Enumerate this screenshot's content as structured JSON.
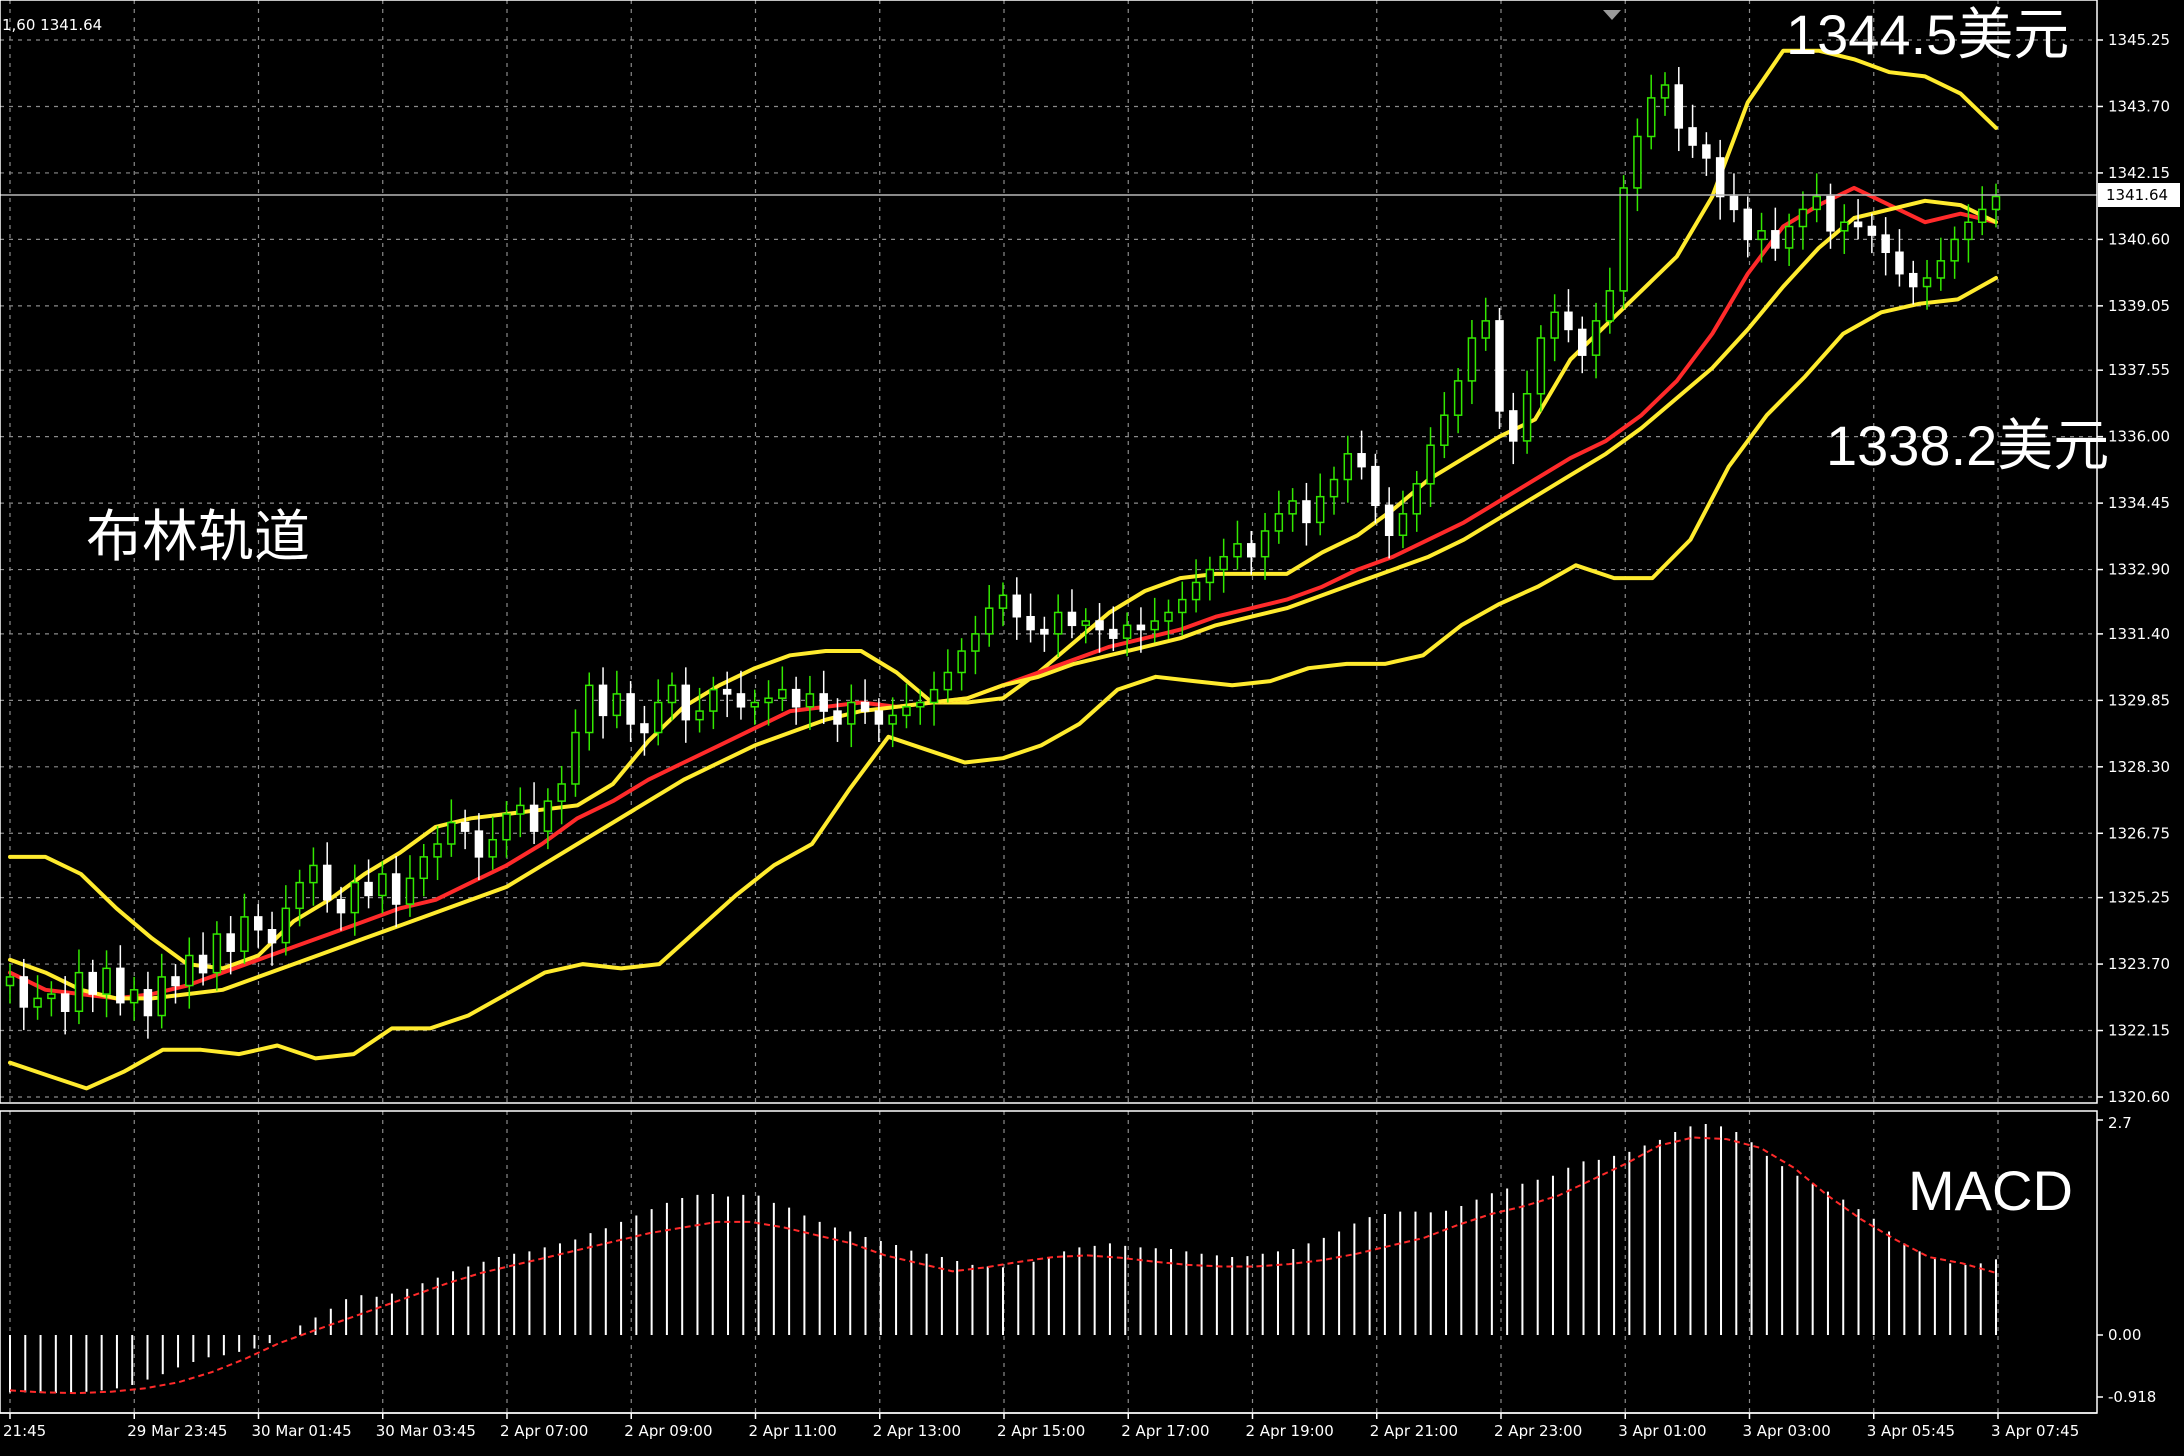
{
  "header": {
    "info_text": "1,60 1341.64"
  },
  "annotations": {
    "bollinger": "布林轨道",
    "upper_price": "1344.5美元",
    "lower_price": "1338.2美元",
    "macd": "MACD"
  },
  "colors": {
    "background": "#000000",
    "grid": "#8a8a8a",
    "bull_candle": "#33e800",
    "bear_candle": "#ffffff",
    "bollinger_band": "#ffeb2e",
    "moving_average": "#ff2a2a",
    "macd_signal": "#ff2a2a",
    "macd_histogram": "#ffffff"
  },
  "chart_data": [
    {
      "type": "candlestick",
      "title": "",
      "ylim": [
        1320.6,
        1345.25
      ],
      "y_ticks": [
        "1345.25",
        "1343.70",
        "1342.15",
        "1340.60",
        "1339.05",
        "1337.55",
        "1336.00",
        "1334.45",
        "1332.90",
        "1331.40",
        "1329.85",
        "1328.30",
        "1326.75",
        "1325.25",
        "1323.70",
        "1322.15",
        "1320.60"
      ],
      "current_price": "1341.64",
      "x_ticks": [
        "21:45",
        "29 Mar 23:45",
        "30 Mar 01:45",
        "30 Mar 03:45",
        "2 Apr 07:00",
        "2 Apr 09:00",
        "2 Apr 11:00",
        "2 Apr 13:00",
        "2 Apr 15:00",
        "2 Apr 17:00",
        "2 Apr 19:00",
        "2 Apr 21:00",
        "2 Apr 23:00",
        "3 Apr 01:00",
        "3 Apr 03:00",
        "3 Apr 05:45",
        "3 Apr 07:45"
      ],
      "close": [
        1323.4,
        1322.7,
        1322.9,
        1323.0,
        1322.6,
        1323.5,
        1323.0,
        1323.6,
        1322.8,
        1323.1,
        1322.5,
        1323.4,
        1323.2,
        1323.9,
        1323.5,
        1324.4,
        1324.0,
        1324.8,
        1324.5,
        1324.2,
        1325.0,
        1325.6,
        1326.0,
        1325.2,
        1324.9,
        1325.6,
        1325.3,
        1325.8,
        1325.1,
        1325.7,
        1326.2,
        1326.5,
        1327.0,
        1326.8,
        1326.2,
        1326.6,
        1327.2,
        1327.4,
        1326.8,
        1327.5,
        1327.9,
        1329.1,
        1330.2,
        1329.5,
        1330.0,
        1329.3,
        1329.1,
        1329.8,
        1330.2,
        1329.4,
        1329.6,
        1330.1,
        1330.0,
        1329.7,
        1329.8,
        1329.9,
        1330.1,
        1329.7,
        1330.0,
        1329.6,
        1329.3,
        1329.8,
        1329.6,
        1329.3,
        1329.5,
        1329.7,
        1329.8,
        1330.1,
        1330.5,
        1331.0,
        1331.4,
        1332.0,
        1332.3,
        1331.8,
        1331.5,
        1331.4,
        1331.9,
        1331.6,
        1331.7,
        1331.5,
        1331.3,
        1331.6,
        1331.5,
        1331.7,
        1331.9,
        1332.2,
        1332.6,
        1332.9,
        1333.2,
        1333.5,
        1333.2,
        1333.8,
        1334.2,
        1334.5,
        1334.0,
        1334.6,
        1335.0,
        1335.6,
        1335.3,
        1334.4,
        1333.7,
        1334.2,
        1334.9,
        1335.8,
        1336.5,
        1337.3,
        1338.3,
        1338.7,
        1336.6,
        1335.9,
        1337.0,
        1338.3,
        1338.9,
        1338.5,
        1337.9,
        1338.7,
        1339.4,
        1341.8,
        1343.0,
        1343.9,
        1344.2,
        1343.2,
        1342.8,
        1342.5,
        1341.6,
        1341.3,
        1340.6,
        1340.8,
        1340.4,
        1340.9,
        1341.3,
        1341.6,
        1340.8,
        1341.0,
        1340.9,
        1340.7,
        1340.3,
        1339.8,
        1339.5,
        1339.7,
        1340.1,
        1340.6,
        1341.0,
        1341.3,
        1341.6
      ],
      "series": [
        {
          "name": "",
          "kind": "upper-band",
          "values": [
            1326.2,
            1326.2,
            1325.8,
            1325.0,
            1324.3,
            1323.7,
            1323.6,
            1323.9,
            1324.7,
            1325.2,
            1325.8,
            1326.3,
            1326.9,
            1327.1,
            1327.2,
            1327.3,
            1327.4,
            1327.9,
            1328.9,
            1329.7,
            1330.2,
            1330.6,
            1330.9,
            1331.0,
            1331.0,
            1330.5,
            1329.8,
            1329.8,
            1329.9,
            1330.5,
            1331.2,
            1331.9,
            1332.4,
            1332.7,
            1332.8,
            1332.8,
            1332.8,
            1333.3,
            1333.7,
            1334.3,
            1335.0,
            1335.5,
            1336.0,
            1336.4,
            1337.8,
            1338.6,
            1339.4,
            1340.2,
            1341.6,
            1343.8,
            1345.0,
            1345.0,
            1344.8,
            1344.5,
            1344.4,
            1344.0,
            1343.2
          ]
        },
        {
          "name": "",
          "kind": "ma",
          "values": [
            1323.5,
            1323.1,
            1323.0,
            1322.9,
            1323.0,
            1323.2,
            1323.5,
            1323.8,
            1324.1,
            1324.4,
            1324.7,
            1325.0,
            1325.2,
            1325.6,
            1326.0,
            1326.5,
            1327.1,
            1327.5,
            1328.0,
            1328.4,
            1328.8,
            1329.2,
            1329.6,
            1329.7,
            1329.8,
            1329.7,
            1329.8,
            1329.9,
            1330.2,
            1330.5,
            1330.8,
            1331.1,
            1331.3,
            1331.5,
            1331.8,
            1332.0,
            1332.2,
            1332.5,
            1332.9,
            1333.2,
            1333.6,
            1334.0,
            1334.5,
            1335.0,
            1335.5,
            1335.9,
            1336.5,
            1337.3,
            1338.4,
            1339.8,
            1340.9,
            1341.4,
            1341.8,
            1341.4,
            1341.0,
            1341.2,
            1341.0
          ]
        },
        {
          "name": "",
          "kind": "mid-band",
          "values": [
            1323.8,
            1323.5,
            1323.1,
            1322.9,
            1322.9,
            1323.0,
            1323.1,
            1323.4,
            1323.7,
            1324.0,
            1324.3,
            1324.6,
            1324.9,
            1325.2,
            1325.5,
            1326.0,
            1326.5,
            1327.0,
            1327.5,
            1328.0,
            1328.4,
            1328.8,
            1329.1,
            1329.4,
            1329.6,
            1329.7,
            1329.8,
            1329.9,
            1330.2,
            1330.4,
            1330.7,
            1330.9,
            1331.1,
            1331.3,
            1331.6,
            1331.8,
            1332.0,
            1332.3,
            1332.6,
            1332.9,
            1333.2,
            1333.6,
            1334.1,
            1334.6,
            1335.1,
            1335.6,
            1336.2,
            1336.9,
            1337.6,
            1338.5,
            1339.5,
            1340.4,
            1341.1,
            1341.3,
            1341.5,
            1341.4,
            1341.0
          ]
        },
        {
          "name": "",
          "kind": "lower-band",
          "values": [
            1321.4,
            1321.1,
            1320.8,
            1321.2,
            1321.7,
            1321.7,
            1321.6,
            1321.8,
            1321.5,
            1321.6,
            1322.2,
            1322.2,
            1322.5,
            1323.0,
            1323.5,
            1323.7,
            1323.6,
            1323.7,
            1324.5,
            1325.3,
            1326.0,
            1326.5,
            1327.8,
            1329.0,
            1328.7,
            1328.4,
            1328.5,
            1328.8,
            1329.3,
            1330.1,
            1330.4,
            1330.3,
            1330.2,
            1330.3,
            1330.6,
            1330.7,
            1330.7,
            1330.9,
            1331.6,
            1332.1,
            1332.5,
            1333.0,
            1332.7,
            1332.7,
            1333.6,
            1335.3,
            1336.5,
            1337.4,
            1338.4,
            1338.9,
            1339.1,
            1339.2,
            1339.7
          ]
        }
      ]
    },
    {
      "type": "bar",
      "title": "",
      "ylim": [
        -0.918,
        2.7
      ],
      "y_ticks": [
        "2.7",
        "0.00",
        "-0.918"
      ],
      "values": [
        -0.85,
        -0.85,
        -0.86,
        -0.86,
        -0.85,
        -0.84,
        -0.82,
        -0.79,
        -0.74,
        -0.66,
        -0.58,
        -0.48,
        -0.4,
        -0.33,
        -0.3,
        -0.25,
        -0.2,
        -0.12,
        0.0,
        0.12,
        0.22,
        0.33,
        0.45,
        0.5,
        0.48,
        0.52,
        0.58,
        0.65,
        0.72,
        0.8,
        0.86,
        0.92,
        0.98,
        1.02,
        1.05,
        1.1,
        1.15,
        1.2,
        1.28,
        1.34,
        1.42,
        1.5,
        1.58,
        1.66,
        1.72,
        1.76,
        1.77,
        1.74,
        1.76,
        1.75,
        1.66,
        1.6,
        1.5,
        1.42,
        1.35,
        1.3,
        1.23,
        1.18,
        1.13,
        1.06,
        1.02,
        0.98,
        0.93,
        0.88,
        0.86,
        0.85,
        0.88,
        0.92,
        0.98,
        1.05,
        1.1,
        1.12,
        1.15,
        1.12,
        1.1,
        1.09,
        1.08,
        1.05,
        1.02,
        1.0,
        0.98,
        0.99,
        1.02,
        1.05,
        1.08,
        1.15,
        1.22,
        1.3,
        1.4,
        1.48,
        1.52,
        1.55,
        1.55,
        1.54,
        1.56,
        1.62,
        1.7,
        1.78,
        1.84,
        1.9,
        1.95,
        2.0,
        2.1,
        2.18,
        2.2,
        2.25,
        2.3,
        2.38,
        2.45,
        2.55,
        2.62,
        2.65,
        2.62,
        2.55,
        2.42,
        2.25,
        2.12,
        2.0,
        1.9,
        1.8,
        1.7,
        1.58,
        1.46,
        1.3,
        1.15,
        1.05,
        0.96,
        0.9,
        0.88,
        0.9,
        0.95
      ],
      "signal": [
        -0.82,
        -0.85,
        -0.86,
        -0.84,
        -0.79,
        -0.7,
        -0.55,
        -0.35,
        -0.12,
        0.05,
        0.2,
        0.35,
        0.5,
        0.65,
        0.78,
        0.88,
        0.98,
        1.08,
        1.18,
        1.28,
        1.35,
        1.42,
        1.42,
        1.35,
        1.25,
        1.15,
        1.0,
        0.9,
        0.8,
        0.85,
        0.92,
        0.98,
        1.0,
        0.97,
        0.92,
        0.88,
        0.86,
        0.86,
        0.89,
        0.94,
        1.02,
        1.12,
        1.22,
        1.38,
        1.52,
        1.62,
        1.75,
        1.95,
        2.15,
        2.38,
        2.48,
        2.46,
        2.35,
        2.1,
        1.75,
        1.45,
        1.2,
        0.98,
        0.9,
        0.78
      ]
    }
  ]
}
